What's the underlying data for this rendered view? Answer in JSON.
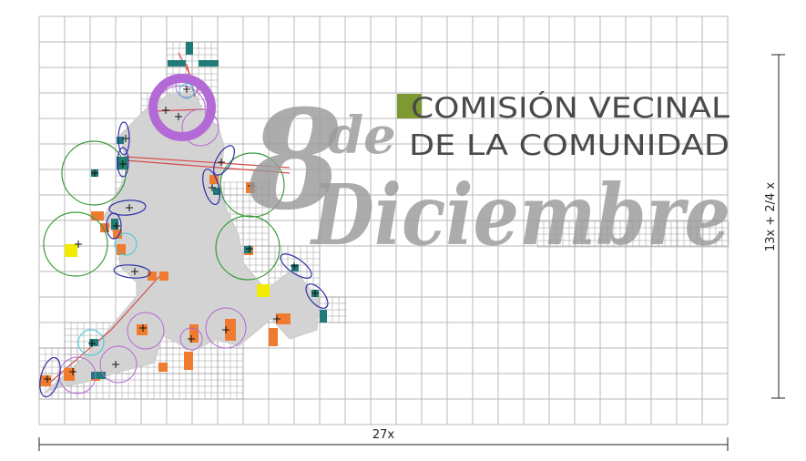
{
  "logo": {
    "line1": "COMISIÓN VECINAL",
    "line2": "DE LA COMUNIDAD",
    "big_number": "8",
    "connector": "de",
    "month": "Diciembre",
    "accent_color": "#7d9a32"
  },
  "dimensions": {
    "width_label": "27x",
    "height_label": "13x + 2/4 x"
  },
  "colors": {
    "grid_line": "#b9b9b9",
    "fine_grid": "#9a9a9a",
    "map_fill": "#d3d3d3",
    "orange_marker": "#f07b2f",
    "teal_marker": "#1f7a78",
    "yellow_marker": "#f2ea00",
    "green_circle": "#3a9a3a",
    "purple_circle": "#b36ad6",
    "blue_ellipse": "#2f2fa8",
    "cyan_circle": "#3ec9d6",
    "red_line": "#d84b4b",
    "text_gray": "#4a4a4a",
    "script_gray": "#9a9a9a"
  }
}
